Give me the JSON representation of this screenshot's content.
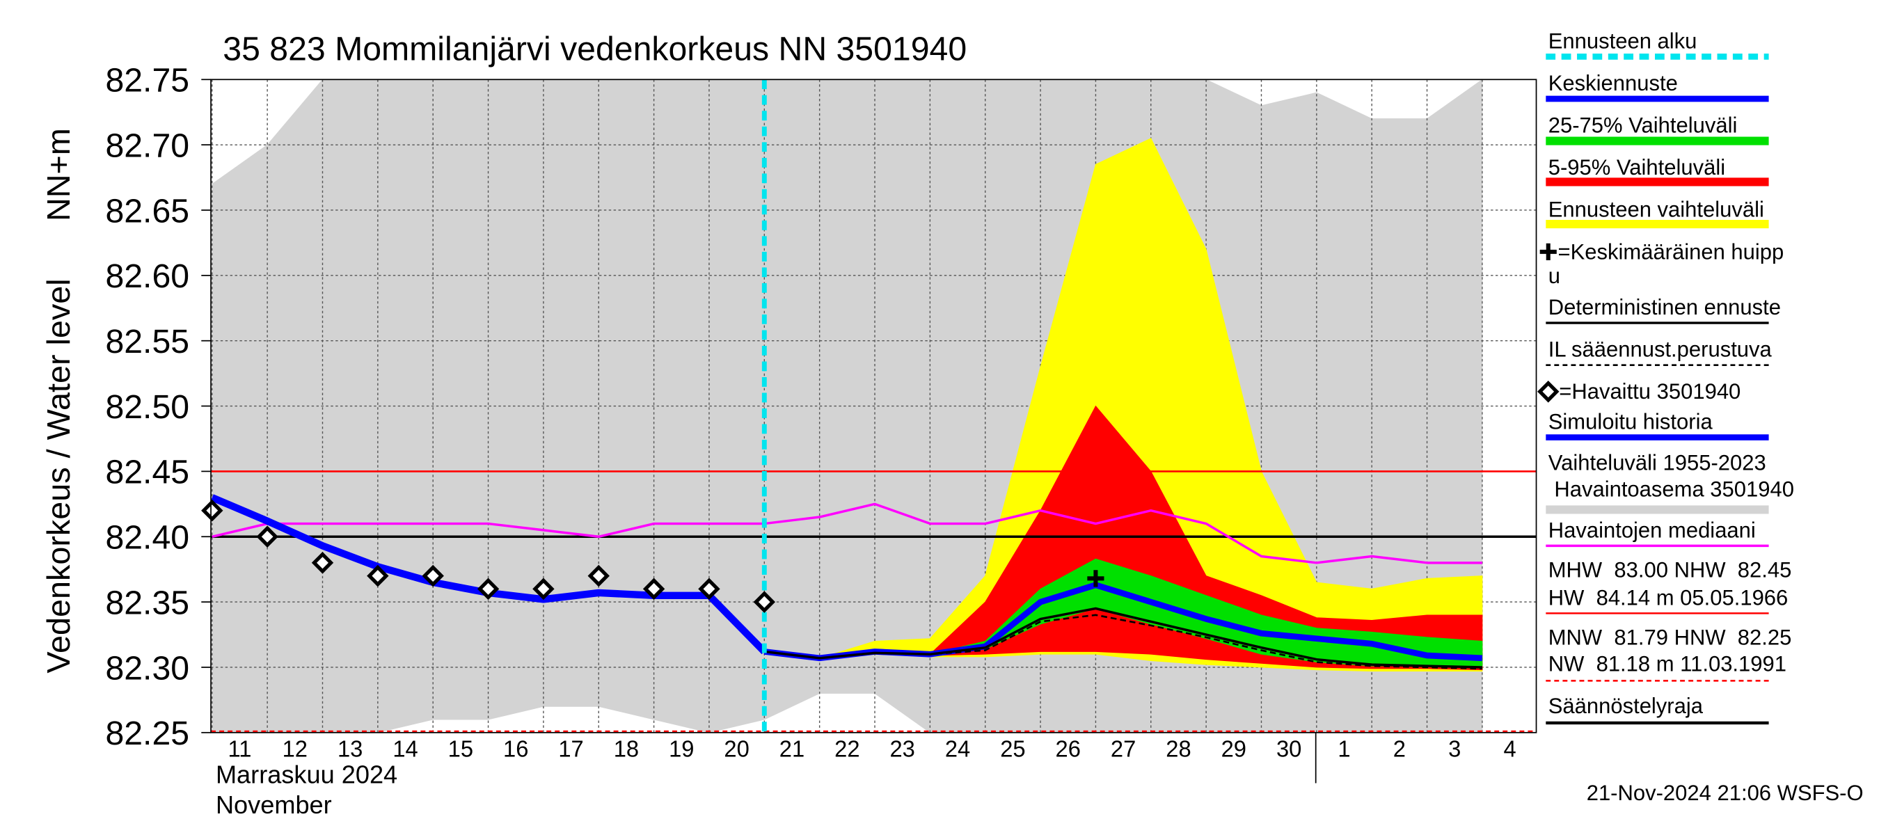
{
  "chart_data": {
    "type": "line",
    "title": "35 823 Mommilanjärvi vedenkorkeus NN 3501940",
    "ylabel": "Vedenkorkeus / Water level",
    "yunit": "NN+m",
    "xlabel": [
      "Marraskuu 2024",
      "November"
    ],
    "footer": "21-Nov-2024 21:06 WSFS-O",
    "categories": [
      "11",
      "12",
      "13",
      "14",
      "15",
      "16",
      "17",
      "18",
      "19",
      "20",
      "21",
      "22",
      "23",
      "24",
      "25",
      "26",
      "27",
      "28",
      "29",
      "30",
      "1",
      "2",
      "3",
      "4"
    ],
    "ylim": [
      82.25,
      82.75
    ],
    "yticks": [
      82.25,
      {
        "value": 82.3,
        "label": "82.30"
      },
      82.35,
      {
        "value": 82.4,
        "label": "82.40"
      },
      82.45,
      {
        "value": 82.5,
        "label": "82.50"
      },
      82.55,
      {
        "value": 82.6,
        "label": "82.60"
      },
      82.65,
      {
        "value": 82.7,
        "label": "82.70"
      },
      82.75
    ],
    "grid": true,
    "forecast_start": {
      "name": "Ennusteen alku",
      "category": "21",
      "color": "#00e5ee"
    },
    "bands": [
      {
        "name": "25-75% Vaihteluväli",
        "color": "#00e000",
        "upper": [
          null,
          null,
          null,
          null,
          null,
          null,
          null,
          null,
          null,
          null,
          82.312,
          82.307,
          82.312,
          82.31,
          82.32,
          82.36,
          82.383,
          82.37,
          82.355,
          82.34,
          82.33,
          82.327,
          82.323,
          82.32
        ],
        "lower": [
          null,
          null,
          null,
          null,
          null,
          null,
          null,
          null,
          null,
          null,
          82.312,
          82.306,
          82.311,
          82.31,
          82.314,
          82.333,
          82.345,
          82.333,
          82.322,
          82.31,
          82.304,
          82.301,
          82.301,
          82.301
        ]
      },
      {
        "name": "5-95% Vaihteluväli",
        "color": "#ff0000",
        "upper": [
          null,
          null,
          null,
          null,
          null,
          null,
          null,
          null,
          null,
          null,
          82.312,
          82.307,
          82.312,
          82.31,
          82.35,
          82.42,
          82.5,
          82.45,
          82.37,
          82.355,
          82.338,
          82.336,
          82.34,
          82.34
        ],
        "lower": [
          null,
          null,
          null,
          null,
          null,
          null,
          null,
          null,
          null,
          null,
          82.312,
          82.306,
          82.311,
          82.309,
          82.31,
          82.312,
          82.312,
          82.31,
          82.306,
          82.303,
          82.3,
          82.299,
          82.299,
          82.298
        ]
      },
      {
        "name": "Ennusteen vaihteluväli",
        "color": "#ffff00",
        "upper": [
          null,
          null,
          null,
          null,
          null,
          null,
          null,
          null,
          null,
          null,
          82.312,
          82.307,
          82.32,
          82.322,
          82.37,
          82.53,
          82.685,
          82.705,
          82.62,
          82.45,
          82.365,
          82.36,
          82.368,
          82.37
        ],
        "lower": [
          null,
          null,
          null,
          null,
          null,
          null,
          null,
          null,
          null,
          null,
          82.312,
          82.306,
          82.31,
          82.308,
          82.308,
          82.31,
          82.31,
          82.305,
          82.302,
          82.3,
          82.298,
          82.297,
          82.297,
          82.297
        ]
      },
      {
        "name_lines": [
          "Vaihteluväli 1955-2023",
          " Havaintoasema 3501940"
        ],
        "color": "#d3d3d3",
        "upper": [
          82.67,
          82.7,
          82.75,
          82.75,
          82.75,
          82.75,
          82.75,
          82.75,
          82.75,
          82.75,
          82.75,
          82.75,
          82.75,
          82.75,
          82.75,
          82.75,
          82.75,
          82.75,
          82.75,
          82.73,
          82.74,
          82.72,
          82.72,
          82.75
        ],
        "lower": [
          82.25,
          82.25,
          82.25,
          82.25,
          82.26,
          82.26,
          82.27,
          82.27,
          82.26,
          82.25,
          82.26,
          82.28,
          82.28,
          82.25,
          82.25,
          82.25,
          82.25,
          82.25,
          82.25,
          82.25,
          82.25,
          82.25,
          82.25,
          82.25
        ]
      }
    ],
    "series": [
      {
        "name": "Keskiennuste",
        "color": "#0000ff",
        "values": [
          null,
          null,
          null,
          null,
          null,
          null,
          null,
          null,
          null,
          null,
          82.312,
          82.307,
          82.312,
          82.31,
          82.316,
          82.35,
          82.363,
          82.35,
          82.337,
          82.326,
          82.322,
          82.318,
          82.309,
          82.307
        ]
      },
      {
        "name": "Deterministinen ennuste",
        "color": "#000000",
        "values": [
          null,
          null,
          null,
          null,
          null,
          null,
          null,
          null,
          null,
          null,
          82.312,
          82.307,
          82.311,
          82.31,
          82.315,
          82.337,
          82.345,
          82.335,
          82.325,
          82.315,
          82.306,
          82.302,
          82.301,
          82.3
        ]
      },
      {
        "name": "IL sääennust.perustuva",
        "color": "#000000",
        "dashed": true,
        "values": [
          null,
          null,
          null,
          null,
          null,
          null,
          null,
          null,
          null,
          null,
          82.312,
          82.307,
          82.311,
          82.31,
          82.313,
          82.335,
          82.34,
          82.332,
          82.323,
          82.313,
          82.304,
          82.301,
          82.3,
          82.299
        ]
      },
      {
        "name": "Simuloitu historia",
        "color": "#0000ff",
        "values": [
          82.43,
          82.412,
          82.393,
          82.377,
          82.365,
          82.357,
          82.352,
          82.357,
          82.355,
          82.355,
          82.312,
          null,
          null,
          null,
          null,
          null,
          null,
          null,
          null,
          null,
          null,
          null,
          null,
          null
        ]
      },
      {
        "name": "Havaintojen mediaani",
        "color": "#ff00ff",
        "values": [
          82.4,
          82.41,
          82.41,
          82.41,
          82.41,
          82.41,
          82.405,
          82.4,
          82.41,
          82.41,
          82.41,
          82.415,
          82.425,
          82.41,
          82.41,
          82.42,
          82.41,
          82.42,
          82.41,
          82.385,
          82.38,
          82.385,
          82.38,
          82.38
        ]
      }
    ],
    "observations": {
      "name": "=Havaittu 3501940",
      "color": "#000000",
      "values": [
        82.42,
        82.4,
        82.38,
        82.37,
        82.37,
        82.36,
        82.36,
        82.37,
        82.36,
        82.36,
        82.35,
        null,
        null,
        null,
        null,
        null,
        null,
        null,
        null,
        null,
        null,
        null,
        null,
        null
      ]
    },
    "peak": {
      "name_lines": [
        "=Keskimääräinen huipp",
        "u"
      ],
      "category": "27",
      "value": 82.368,
      "color": "#000000"
    },
    "reference_lines": [
      {
        "name_lines": [
          "MHW  83.00 NHW  82.45",
          "HW  84.14 m 05.05.1966"
        ],
        "value": 82.45,
        "color": "#ff0000"
      },
      {
        "name_lines": [
          "MNW  81.79 HNW  82.25",
          "NW  81.18 m 11.03.1991"
        ],
        "value": 82.25,
        "color": "#ff0000",
        "dashed": true
      },
      {
        "name": "Säännöstelyraja",
        "value": 82.4,
        "color": "#000000"
      }
    ]
  }
}
